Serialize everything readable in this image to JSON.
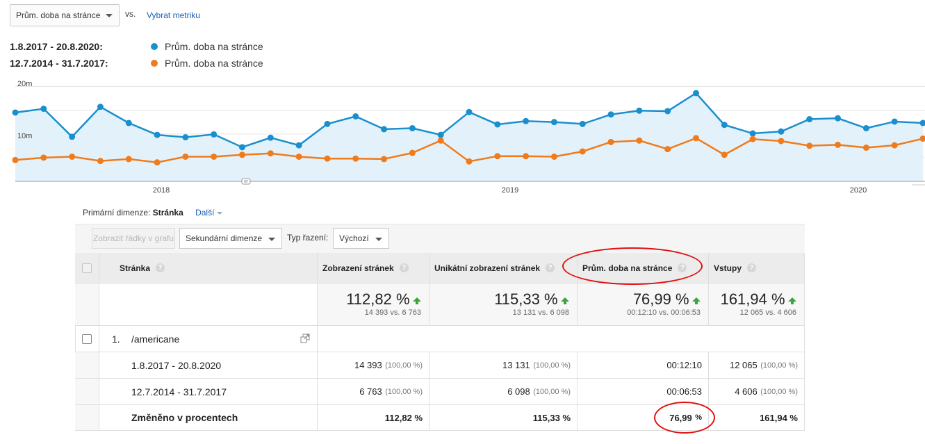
{
  "metric_selector": {
    "value": "Prům. doba na stránce"
  },
  "vs_label": "vs.",
  "pick_metric_label": "Vybrat metriku",
  "legend": [
    {
      "date_range": "1.8.2017 - 20.8.2020:",
      "metric": "Prům. doba na stránce",
      "color": "#1a8fce"
    },
    {
      "date_range": "12.7.2014 - 31.7.2017:",
      "metric": "Prům. doba na stránce",
      "color": "#f07b1b"
    }
  ],
  "chart_data": {
    "type": "line",
    "y_ticks": [
      "20m",
      "10m"
    ],
    "x_ticks": [
      "2018",
      "2019",
      "2020"
    ],
    "ylim": [
      0,
      22.7
    ],
    "series": [
      {
        "color": "#1a8fce",
        "values": [
          14.5,
          15.3,
          9.4,
          15.7,
          12.3,
          9.8,
          9.3,
          9.9,
          7.2,
          9.2,
          7.6,
          12.1,
          13.7,
          11.0,
          11.2,
          9.8,
          14.6,
          12.0,
          12.7,
          12.5,
          12.1,
          14.1,
          14.9,
          14.8,
          18.6,
          11.9,
          10.1,
          10.5,
          13.1,
          13.3,
          11.2,
          12.6,
          12.3
        ]
      },
      {
        "color": "#f07b1b",
        "values": [
          4.5,
          5.0,
          5.2,
          4.3,
          4.7,
          4.0,
          5.2,
          5.2,
          5.6,
          5.9,
          5.2,
          4.8,
          4.8,
          4.7,
          6.0,
          8.6,
          4.2,
          5.3,
          5.3,
          5.2,
          6.3,
          8.3,
          8.6,
          6.8,
          9.1,
          5.6,
          8.9,
          8.5,
          7.5,
          7.7,
          7.1,
          7.6,
          9.0
        ]
      }
    ]
  },
  "primary_dimension": {
    "label": "Primární dimenze:",
    "value": "Stránka",
    "other": "Další"
  },
  "toolbar": {
    "show_rows_button": "Zobrazit řádky v grafu",
    "secondary_dimension": "Sekundární dimenze",
    "sort_type_label": "Typ řazení:",
    "sort_type_value": "Výchozí"
  },
  "table": {
    "columns": [
      "Stránka",
      "Zobrazení stránek",
      "Unikátní zobrazení stránek",
      "Prům. doba na stránce",
      "Vstupy"
    ],
    "totals": [
      {
        "big": "112,82 %",
        "sub": "14 393 vs. 6 763"
      },
      {
        "big": "115,33 %",
        "sub": "13 131 vs. 6 098"
      },
      {
        "big": "76,99 %",
        "sub": "00:12:10 vs. 00:06:53"
      },
      {
        "big": "161,94 %",
        "sub": "12 065 vs. 4 606"
      }
    ],
    "row": {
      "index": "1.",
      "page": "/americane"
    },
    "subrows": [
      {
        "label": "1.8.2017 - 20.8.2020",
        "pageviews": "14 393",
        "pageviews_pct": "(100,00 %)",
        "unique": "13 131",
        "unique_pct": "(100,00 %)",
        "avg_time": "00:12:10",
        "entrances": "12 065",
        "entrances_pct": "(100,00 %)"
      },
      {
        "label": "12.7.2014 - 31.7.2017",
        "pageviews": "6 763",
        "pageviews_pct": "(100,00 %)",
        "unique": "6 098",
        "unique_pct": "(100,00 %)",
        "avg_time": "00:06:53",
        "entrances": "4 606",
        "entrances_pct": "(100,00 %)"
      }
    ],
    "change_row": {
      "label": "Změněno v procentech",
      "pageviews": "112,82 %",
      "unique": "115,33 %",
      "avg_time_value": "76,99",
      "avg_time_unit": "%",
      "entrances": "161,94 %"
    }
  }
}
